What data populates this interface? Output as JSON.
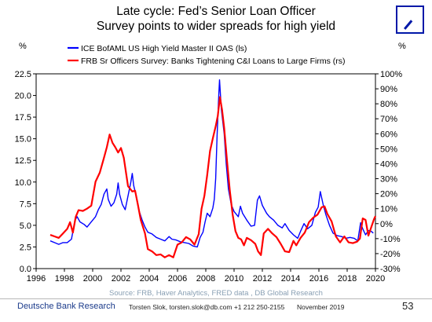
{
  "chart_data": {
    "type": "line",
    "title": "Late cycle: Fed’s Senior Loan Officer",
    "subtitle": "Survey points to wider spreads for high yield",
    "left_unit": "%",
    "right_unit": "%",
    "ylim_left": [
      0,
      22.5
    ],
    "ylim_right": [
      -30,
      100
    ],
    "xlim": [
      1996,
      2020
    ],
    "x_ticks": [
      "1996",
      "1998",
      "2000",
      "2002",
      "2004",
      "2006",
      "2008",
      "2010",
      "2012",
      "2014",
      "2016",
      "2018",
      "2020"
    ],
    "y_left_ticks": [
      "0.0",
      "2.5",
      "5.0",
      "7.5",
      "10.0",
      "12.5",
      "15.0",
      "17.5",
      "20.0",
      "22.5"
    ],
    "y_right_ticks": [
      "-30%",
      "-20%",
      "-10%",
      "0%",
      "10%",
      "20%",
      "30%",
      "40%",
      "50%",
      "60%",
      "70%",
      "80%",
      "90%",
      "100%"
    ],
    "legend_position": "top-left",
    "series": [
      {
        "name": "ICE BofAML US High Yield Master II OAS (ls)",
        "axis": "left",
        "color": "#0000ff",
        "points": [
          [
            1997.0,
            3.2
          ],
          [
            1997.3,
            3.0
          ],
          [
            1997.6,
            2.8
          ],
          [
            1997.9,
            3.0
          ],
          [
            1998.2,
            3.0
          ],
          [
            1998.5,
            3.4
          ],
          [
            1998.75,
            5.6
          ],
          [
            1998.9,
            6.0
          ],
          [
            1999.1,
            5.4
          ],
          [
            1999.4,
            5.1
          ],
          [
            1999.6,
            4.8
          ],
          [
            1999.8,
            5.2
          ],
          [
            2000.0,
            5.6
          ],
          [
            2000.2,
            6.0
          ],
          [
            2000.4,
            6.8
          ],
          [
            2000.6,
            7.4
          ],
          [
            2000.8,
            8.6
          ],
          [
            2001.0,
            9.2
          ],
          [
            2001.1,
            8.0
          ],
          [
            2001.3,
            7.2
          ],
          [
            2001.5,
            7.6
          ],
          [
            2001.7,
            8.6
          ],
          [
            2001.8,
            9.9
          ],
          [
            2001.9,
            8.6
          ],
          [
            2002.1,
            7.4
          ],
          [
            2002.3,
            6.8
          ],
          [
            2002.5,
            8.4
          ],
          [
            2002.7,
            10.0
          ],
          [
            2002.8,
            11.0
          ],
          [
            2002.9,
            9.6
          ],
          [
            2003.1,
            8.2
          ],
          [
            2003.3,
            6.6
          ],
          [
            2003.5,
            5.6
          ],
          [
            2003.7,
            4.8
          ],
          [
            2003.9,
            4.2
          ],
          [
            2004.2,
            4.0
          ],
          [
            2004.5,
            3.6
          ],
          [
            2004.8,
            3.4
          ],
          [
            2005.1,
            3.2
          ],
          [
            2005.4,
            3.7
          ],
          [
            2005.6,
            3.4
          ],
          [
            2005.9,
            3.3
          ],
          [
            2006.2,
            3.1
          ],
          [
            2006.5,
            3.0
          ],
          [
            2006.8,
            2.9
          ],
          [
            2007.1,
            2.6
          ],
          [
            2007.4,
            2.5
          ],
          [
            2007.6,
            3.6
          ],
          [
            2007.8,
            4.2
          ],
          [
            2007.95,
            5.4
          ],
          [
            2008.1,
            6.4
          ],
          [
            2008.3,
            6.0
          ],
          [
            2008.5,
            7.0
          ],
          [
            2008.6,
            8.0
          ],
          [
            2008.7,
            10.4
          ],
          [
            2008.8,
            15.4
          ],
          [
            2008.92,
            20.2
          ],
          [
            2008.97,
            21.8
          ],
          [
            2009.1,
            18.4
          ],
          [
            2009.3,
            15.6
          ],
          [
            2009.45,
            12.0
          ],
          [
            2009.6,
            9.2
          ],
          [
            2009.8,
            7.4
          ],
          [
            2010.0,
            6.6
          ],
          [
            2010.3,
            6.0
          ],
          [
            2010.45,
            7.2
          ],
          [
            2010.6,
            6.4
          ],
          [
            2010.9,
            5.6
          ],
          [
            2011.2,
            4.9
          ],
          [
            2011.45,
            5.0
          ],
          [
            2011.65,
            7.9
          ],
          [
            2011.8,
            8.4
          ],
          [
            2012.0,
            7.3
          ],
          [
            2012.3,
            6.4
          ],
          [
            2012.5,
            6.0
          ],
          [
            2012.8,
            5.6
          ],
          [
            2013.1,
            5.0
          ],
          [
            2013.4,
            4.7
          ],
          [
            2013.6,
            5.2
          ],
          [
            2013.9,
            4.4
          ],
          [
            2014.2,
            3.9
          ],
          [
            2014.5,
            3.5
          ],
          [
            2014.7,
            4.3
          ],
          [
            2014.95,
            5.2
          ],
          [
            2015.2,
            4.6
          ],
          [
            2015.5,
            5.0
          ],
          [
            2015.75,
            6.5
          ],
          [
            2015.95,
            7.1
          ],
          [
            2016.1,
            8.9
          ],
          [
            2016.3,
            7.4
          ],
          [
            2016.5,
            6.2
          ],
          [
            2016.75,
            5.0
          ],
          [
            2017.0,
            4.1
          ],
          [
            2017.3,
            3.8
          ],
          [
            2017.6,
            3.7
          ],
          [
            2017.9,
            3.5
          ],
          [
            2018.2,
            3.6
          ],
          [
            2018.5,
            3.5
          ],
          [
            2018.75,
            3.2
          ],
          [
            2018.95,
            5.3
          ],
          [
            2019.1,
            4.6
          ],
          [
            2019.3,
            3.9
          ],
          [
            2019.5,
            4.4
          ],
          [
            2019.7,
            4.3
          ],
          [
            2019.85,
            4.1
          ]
        ]
      },
      {
        "name": "FRB Sr Officers Survey: Banks Tightening C&I Loans to Large Firms (rs)",
        "axis": "right",
        "color": "#ff0000",
        "points": [
          [
            1997.0,
            -7.5
          ],
          [
            1997.3,
            -8.5
          ],
          [
            1997.6,
            -9.5
          ],
          [
            1997.9,
            -6.5
          ],
          [
            1998.2,
            -3.5
          ],
          [
            1998.4,
            1.0
          ],
          [
            1998.6,
            -6.0
          ],
          [
            1998.8,
            4.5
          ],
          [
            1999.0,
            9.0
          ],
          [
            1999.3,
            8.5
          ],
          [
            1999.6,
            10.0
          ],
          [
            1999.9,
            12.0
          ],
          [
            2000.2,
            28.0
          ],
          [
            2000.5,
            34.0
          ],
          [
            2000.8,
            44.0
          ],
          [
            2001.0,
            51.0
          ],
          [
            2001.2,
            59.5
          ],
          [
            2001.4,
            54.0
          ],
          [
            2001.6,
            51.0
          ],
          [
            2001.8,
            47.5
          ],
          [
            2002.0,
            50.5
          ],
          [
            2002.2,
            44.0
          ],
          [
            2002.5,
            25.0
          ],
          [
            2002.8,
            21.5
          ],
          [
            2003.0,
            22.0
          ],
          [
            2003.2,
            12.5
          ],
          [
            2003.4,
            2.5
          ],
          [
            2003.7,
            -6.5
          ],
          [
            2003.9,
            -17.0
          ],
          [
            2004.2,
            -18.5
          ],
          [
            2004.5,
            -21.0
          ],
          [
            2004.8,
            -20.5
          ],
          [
            2005.1,
            -22.5
          ],
          [
            2005.4,
            -21.0
          ],
          [
            2005.7,
            -22.5
          ],
          [
            2006.0,
            -14.0
          ],
          [
            2006.3,
            -12.5
          ],
          [
            2006.6,
            -9.0
          ],
          [
            2006.9,
            -10.5
          ],
          [
            2007.2,
            -14.0
          ],
          [
            2007.5,
            -7.0
          ],
          [
            2007.7,
            10.0
          ],
          [
            2007.9,
            18.5
          ],
          [
            2008.1,
            32.5
          ],
          [
            2008.3,
            48.5
          ],
          [
            2008.5,
            57.0
          ],
          [
            2008.7,
            65.0
          ],
          [
            2008.85,
            72.0
          ],
          [
            2009.0,
            84.5
          ],
          [
            2009.15,
            76.0
          ],
          [
            2009.3,
            64.0
          ],
          [
            2009.5,
            42.0
          ],
          [
            2009.7,
            22.0
          ],
          [
            2009.9,
            6.0
          ],
          [
            2010.1,
            -5.0
          ],
          [
            2010.3,
            -9.5
          ],
          [
            2010.5,
            -10.5
          ],
          [
            2010.7,
            -14.5
          ],
          [
            2010.9,
            -9.5
          ],
          [
            2011.2,
            -11.0
          ],
          [
            2011.5,
            -13.5
          ],
          [
            2011.7,
            -18.5
          ],
          [
            2011.9,
            -21.0
          ],
          [
            2012.1,
            -6.5
          ],
          [
            2012.4,
            -3.5
          ],
          [
            2012.7,
            -6.5
          ],
          [
            2013.0,
            -9.0
          ],
          [
            2013.3,
            -13.5
          ],
          [
            2013.6,
            -18.5
          ],
          [
            2013.9,
            -19.0
          ],
          [
            2014.2,
            -11.5
          ],
          [
            2014.4,
            -14.5
          ],
          [
            2014.7,
            -9.5
          ],
          [
            2015.0,
            -6.0
          ],
          [
            2015.3,
            1.0
          ],
          [
            2015.6,
            4.0
          ],
          [
            2015.9,
            6.0
          ],
          [
            2016.2,
            11.0
          ],
          [
            2016.4,
            11.5
          ],
          [
            2016.6,
            6.5
          ],
          [
            2016.9,
            1.5
          ],
          [
            2017.2,
            -8.5
          ],
          [
            2017.5,
            -12.5
          ],
          [
            2017.8,
            -8.5
          ],
          [
            2018.1,
            -12.5
          ],
          [
            2018.4,
            -13.0
          ],
          [
            2018.7,
            -12.0
          ],
          [
            2018.9,
            -10.0
          ],
          [
            2019.1,
            3.5
          ],
          [
            2019.3,
            2.5
          ],
          [
            2019.5,
            -8.0
          ],
          [
            2019.7,
            -2.5
          ],
          [
            2019.9,
            3.0
          ],
          [
            2020.0,
            5.0
          ]
        ]
      }
    ],
    "source": "Source: FRB, Haver Analytics, FRED data , DB Global Research"
  },
  "footer": {
    "brand": "Deutsche Bank Research",
    "author": "Torsten Slok, torsten.slok@db.com  +1 212 250-2155",
    "date": "November 2019",
    "page": "53"
  }
}
